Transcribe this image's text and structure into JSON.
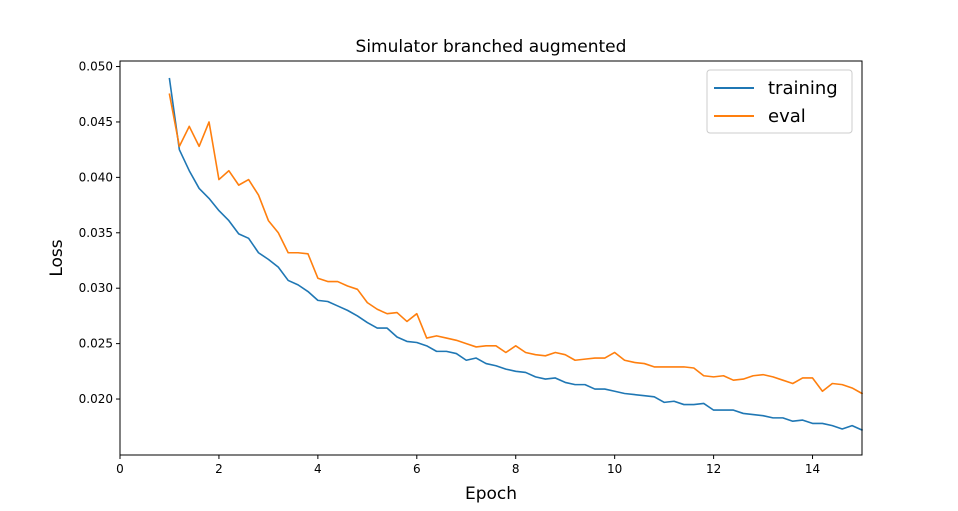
{
  "chart_data": {
    "type": "line",
    "title": "Simulator branched augmented",
    "xlabel": "Epoch",
    "ylabel": "Loss",
    "xlim": [
      0,
      15
    ],
    "ylim": [
      0.01495,
      0.0505
    ],
    "xticks": [
      0,
      2,
      4,
      6,
      8,
      10,
      12,
      14
    ],
    "xtick_labels": [
      "0",
      "2",
      "4",
      "6",
      "8",
      "10",
      "12",
      "14"
    ],
    "yticks": [
      0.02,
      0.025,
      0.03,
      0.035,
      0.04,
      0.045,
      0.05
    ],
    "ytick_labels": [
      "0.020",
      "0.025",
      "0.030",
      "0.035",
      "0.040",
      "0.045",
      "0.050"
    ],
    "grid": false,
    "legend_position": "upper right",
    "x": [
      1.0,
      1.2,
      1.4,
      1.6,
      1.8,
      2.0,
      2.2,
      2.4,
      2.6,
      2.8,
      3.0,
      3.2,
      3.4,
      3.6,
      3.8,
      4.0,
      4.2,
      4.4,
      4.6,
      4.8,
      5.0,
      5.2,
      5.4,
      5.6,
      5.8,
      6.0,
      6.2,
      6.4,
      6.6,
      6.8,
      7.0,
      7.2,
      7.4,
      7.6,
      7.8,
      8.0,
      8.2,
      8.4,
      8.6,
      8.8,
      9.0,
      9.2,
      9.4,
      9.6,
      9.8,
      10.0,
      10.2,
      10.4,
      10.6,
      10.8,
      11.0,
      11.2,
      11.4,
      11.6,
      11.8,
      12.0,
      12.2,
      12.4,
      12.6,
      12.8,
      13.0,
      13.2,
      13.4,
      13.6,
      13.8,
      14.0,
      14.2,
      14.4,
      14.6,
      14.8,
      15.0
    ],
    "series": [
      {
        "name": "training",
        "color": "#1f77b4",
        "values": [
          0.0489,
          0.0425,
          0.0406,
          0.039,
          0.0381,
          0.037,
          0.0361,
          0.0349,
          0.0345,
          0.0332,
          0.0326,
          0.0319,
          0.0307,
          0.0303,
          0.0297,
          0.0289,
          0.0288,
          0.0284,
          0.028,
          0.0275,
          0.0269,
          0.0264,
          0.0264,
          0.0256,
          0.0252,
          0.0251,
          0.0248,
          0.0243,
          0.0243,
          0.0241,
          0.0235,
          0.0237,
          0.0232,
          0.023,
          0.0227,
          0.0225,
          0.0224,
          0.022,
          0.0218,
          0.0219,
          0.0215,
          0.0213,
          0.0213,
          0.0209,
          0.0209,
          0.0207,
          0.0205,
          0.0204,
          0.0203,
          0.0202,
          0.0197,
          0.0198,
          0.0195,
          0.0195,
          0.0196,
          0.019,
          0.019,
          0.019,
          0.0187,
          0.0186,
          0.0185,
          0.0183,
          0.0183,
          0.018,
          0.0181,
          0.0178,
          0.0178,
          0.0176,
          0.0173,
          0.0176,
          0.0172
        ]
      },
      {
        "name": "eval",
        "color": "#ff7f0e",
        "values": [
          0.0475,
          0.0428,
          0.0446,
          0.0428,
          0.045,
          0.0398,
          0.0406,
          0.0393,
          0.0398,
          0.0384,
          0.0361,
          0.035,
          0.0332,
          0.0332,
          0.0331,
          0.0309,
          0.0306,
          0.0306,
          0.0302,
          0.0299,
          0.0287,
          0.0281,
          0.0277,
          0.0278,
          0.027,
          0.0277,
          0.0255,
          0.0257,
          0.0255,
          0.0253,
          0.025,
          0.0247,
          0.0248,
          0.0248,
          0.0242,
          0.0248,
          0.0242,
          0.024,
          0.0239,
          0.0242,
          0.024,
          0.0235,
          0.0236,
          0.0237,
          0.0237,
          0.0242,
          0.0235,
          0.0233,
          0.0232,
          0.0229,
          0.0229,
          0.0229,
          0.0229,
          0.0228,
          0.0221,
          0.022,
          0.0221,
          0.0217,
          0.0218,
          0.0221,
          0.0222,
          0.022,
          0.0217,
          0.0214,
          0.0219,
          0.0219,
          0.0207,
          0.0214,
          0.0213,
          0.021,
          0.0205
        ]
      }
    ]
  }
}
